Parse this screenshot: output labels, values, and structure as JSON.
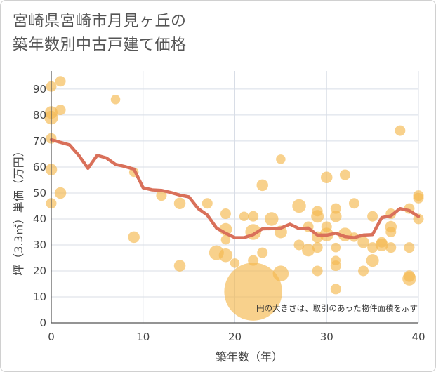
{
  "chart_data": {
    "type": "scatter",
    "title_lines": [
      "宮崎県宮崎市月見ヶ丘の",
      "築年数別中古戸建て価格"
    ],
    "xlabel": "築年数（年）",
    "ylabel": "坪（3.3㎡）単価（万円）",
    "xlim": [
      0,
      40
    ],
    "ylim": [
      0,
      97
    ],
    "x_ticks": [
      0,
      10,
      20,
      30,
      40
    ],
    "y_ticks": [
      0,
      10,
      20,
      30,
      40,
      50,
      60,
      70,
      80,
      90
    ],
    "grid": true,
    "note": "円の大きさは、取引のあった物件面積を示す",
    "colors": {
      "bubble": "#f5b94f",
      "line": "#d9705a",
      "grid": "#d8dde6"
    },
    "points": [
      {
        "x": 0,
        "y": 91,
        "s": 1.0
      },
      {
        "x": 1,
        "y": 93,
        "s": 1.0
      },
      {
        "x": 0,
        "y": 81,
        "s": 1.2
      },
      {
        "x": 0,
        "y": 79,
        "s": 1.3
      },
      {
        "x": 1,
        "y": 82,
        "s": 1.0
      },
      {
        "x": 0,
        "y": 71,
        "s": 1.0
      },
      {
        "x": 0,
        "y": 59,
        "s": 1.1
      },
      {
        "x": 0,
        "y": 46,
        "s": 1.0
      },
      {
        "x": 1,
        "y": 50,
        "s": 1.1
      },
      {
        "x": 7,
        "y": 86,
        "s": 0.9
      },
      {
        "x": 9,
        "y": 58,
        "s": 0.9
      },
      {
        "x": 9,
        "y": 33,
        "s": 1.1
      },
      {
        "x": 12,
        "y": 49,
        "s": 1.0
      },
      {
        "x": 14,
        "y": 46,
        "s": 1.1
      },
      {
        "x": 14,
        "y": 22,
        "s": 1.1
      },
      {
        "x": 17,
        "y": 46,
        "s": 1.0
      },
      {
        "x": 18,
        "y": 27,
        "s": 1.4
      },
      {
        "x": 19,
        "y": 42,
        "s": 1.0
      },
      {
        "x": 19,
        "y": 36,
        "s": 1.2
      },
      {
        "x": 19,
        "y": 32,
        "s": 0.9
      },
      {
        "x": 19,
        "y": 26,
        "s": 1.3
      },
      {
        "x": 20,
        "y": 23,
        "s": 0.9
      },
      {
        "x": 21,
        "y": 41,
        "s": 0.9
      },
      {
        "x": 22,
        "y": 41,
        "s": 1.0
      },
      {
        "x": 22,
        "y": 35,
        "s": 1.5
      },
      {
        "x": 22,
        "y": 24,
        "s": 1.0
      },
      {
        "x": 22,
        "y": 12,
        "s": 5.5
      },
      {
        "x": 23,
        "y": 53,
        "s": 1.1
      },
      {
        "x": 23,
        "y": 27,
        "s": 1.0
      },
      {
        "x": 24,
        "y": 40,
        "s": 1.3
      },
      {
        "x": 25,
        "y": 63,
        "s": 0.9
      },
      {
        "x": 25,
        "y": 35,
        "s": 1.2
      },
      {
        "x": 25,
        "y": 19,
        "s": 1.5
      },
      {
        "x": 27,
        "y": 45,
        "s": 1.3
      },
      {
        "x": 27,
        "y": 30,
        "s": 1.0
      },
      {
        "x": 28,
        "y": 37,
        "s": 1.0
      },
      {
        "x": 28,
        "y": 28,
        "s": 1.2
      },
      {
        "x": 29,
        "y": 43,
        "s": 1.0
      },
      {
        "x": 29,
        "y": 41,
        "s": 1.2
      },
      {
        "x": 29,
        "y": 33,
        "s": 1.1
      },
      {
        "x": 29,
        "y": 29,
        "s": 1.0
      },
      {
        "x": 29,
        "y": 20,
        "s": 1.0
      },
      {
        "x": 30,
        "y": 56,
        "s": 1.1
      },
      {
        "x": 30,
        "y": 37,
        "s": 1.0
      },
      {
        "x": 30,
        "y": 34,
        "s": 1.3
      },
      {
        "x": 31,
        "y": 44,
        "s": 1.0
      },
      {
        "x": 31,
        "y": 41,
        "s": 1.1
      },
      {
        "x": 31,
        "y": 29,
        "s": 0.9
      },
      {
        "x": 31,
        "y": 24,
        "s": 0.9
      },
      {
        "x": 31,
        "y": 22,
        "s": 1.0
      },
      {
        "x": 31,
        "y": 13,
        "s": 1.0
      },
      {
        "x": 32,
        "y": 57,
        "s": 1.0
      },
      {
        "x": 32,
        "y": 34,
        "s": 1.3
      },
      {
        "x": 33,
        "y": 46,
        "s": 1.0
      },
      {
        "x": 33,
        "y": 33,
        "s": 0.9
      },
      {
        "x": 34,
        "y": 31,
        "s": 1.1
      },
      {
        "x": 34,
        "y": 20,
        "s": 1.0
      },
      {
        "x": 35,
        "y": 41,
        "s": 1.0
      },
      {
        "x": 35,
        "y": 29,
        "s": 1.0
      },
      {
        "x": 35,
        "y": 24,
        "s": 1.2
      },
      {
        "x": 36,
        "y": 31,
        "s": 1.0
      },
      {
        "x": 36,
        "y": 30,
        "s": 1.2
      },
      {
        "x": 37,
        "y": 42,
        "s": 1.0
      },
      {
        "x": 37,
        "y": 37,
        "s": 1.1
      },
      {
        "x": 37,
        "y": 35,
        "s": 1.0
      },
      {
        "x": 37,
        "y": 29,
        "s": 1.0
      },
      {
        "x": 38,
        "y": 74,
        "s": 1.0
      },
      {
        "x": 39,
        "y": 44,
        "s": 1.0
      },
      {
        "x": 39,
        "y": 29,
        "s": 1.0
      },
      {
        "x": 39,
        "y": 18,
        "s": 1.1
      },
      {
        "x": 39,
        "y": 17,
        "s": 1.3
      },
      {
        "x": 40,
        "y": 49,
        "s": 1.0
      },
      {
        "x": 40,
        "y": 48,
        "s": 1.0
      },
      {
        "x": 40,
        "y": 40,
        "s": 1.0
      }
    ],
    "trend": {
      "x": [
        0,
        1,
        2,
        3,
        4,
        5,
        6,
        7,
        8,
        9,
        10,
        11,
        12,
        13,
        14,
        15,
        16,
        17,
        18,
        19,
        20,
        21,
        22,
        23,
        24,
        25,
        26,
        27,
        28,
        29,
        30,
        31,
        32,
        33,
        34,
        35,
        36,
        37,
        38,
        39,
        40
      ],
      "y": [
        70.5,
        69.5,
        68.5,
        64.5,
        59.5,
        64.5,
        63.5,
        61,
        60.2,
        59.2,
        52,
        51.2,
        51,
        50.2,
        49.2,
        48.5,
        44,
        41.5,
        36.5,
        34.5,
        32.8,
        32.8,
        34,
        36.2,
        36.3,
        36.5,
        38,
        36.3,
        36.5,
        33.8,
        33.8,
        34.5,
        33.2,
        32.8,
        33.8,
        34,
        40.5,
        41.2,
        44,
        43.2,
        41
      ]
    }
  }
}
